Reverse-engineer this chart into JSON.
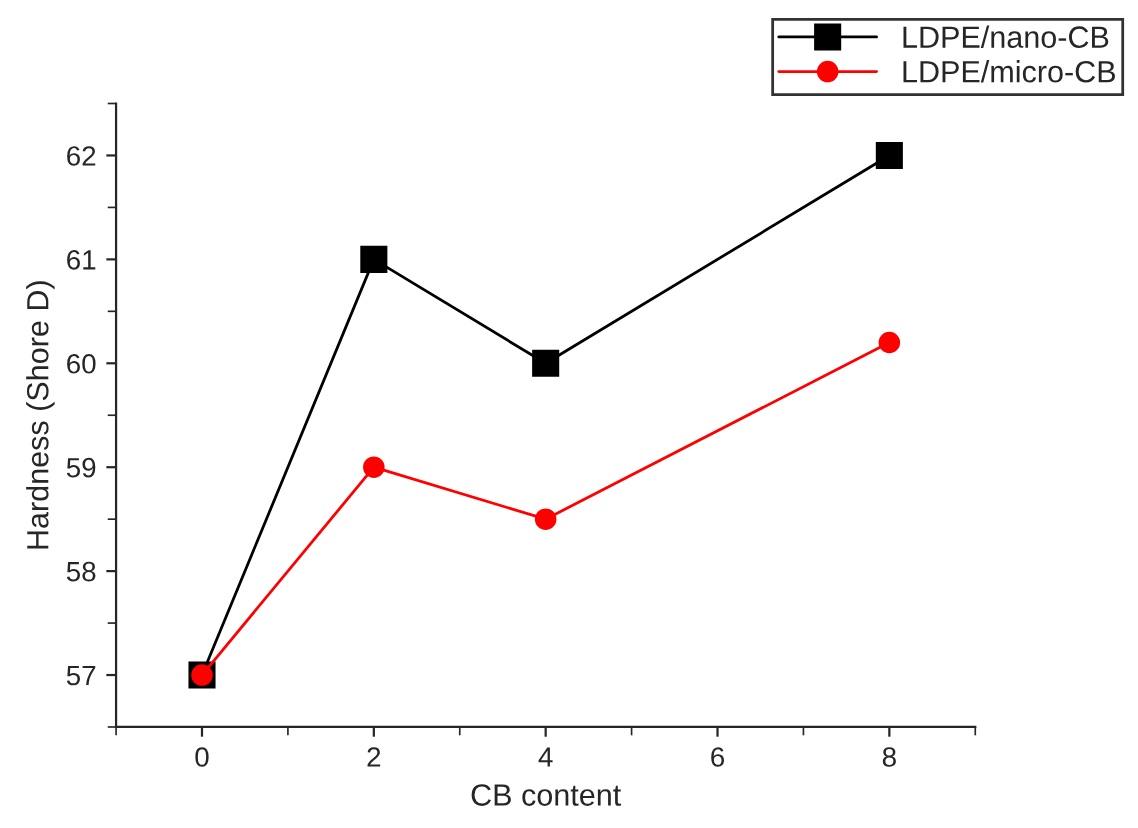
{
  "chart_data": {
    "type": "line",
    "xlabel": "CB content",
    "ylabel": "Hardness (Shore D)",
    "x": [
      0,
      2,
      4,
      8
    ],
    "series": [
      {
        "name": "LDPE/nano-CB",
        "color": "#000000",
        "marker": "square",
        "values": [
          57,
          61,
          60,
          62
        ]
      },
      {
        "name": "LDPE/micro-CB",
        "color": "#ff0000",
        "marker": "circle",
        "values": [
          57,
          59,
          58.5,
          60.2
        ]
      }
    ],
    "xlim": [
      -1,
      9
    ],
    "xticks": [
      0,
      2,
      4,
      6,
      8
    ],
    "ylim": [
      56.5,
      62.5
    ],
    "yticks": [
      57,
      58,
      59,
      60,
      61,
      62
    ],
    "grid": false,
    "legend": "top right",
    "line_style": "solid"
  }
}
